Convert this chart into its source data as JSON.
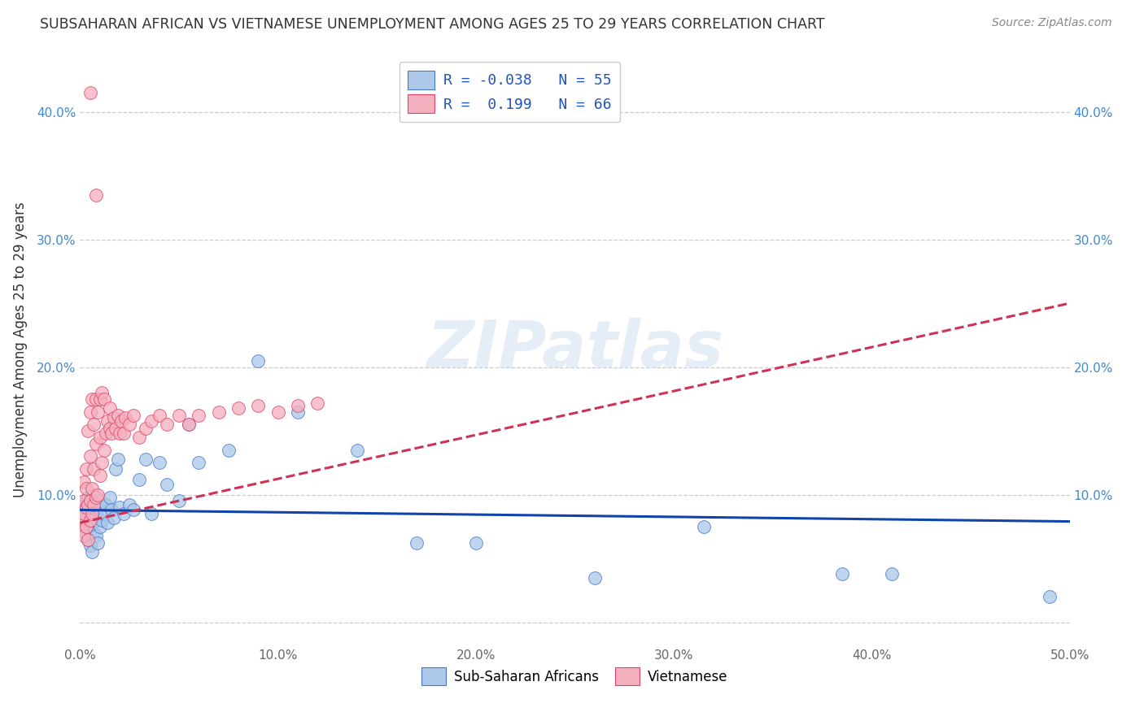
{
  "title": "SUBSAHARAN AFRICAN VS VIETNAMESE UNEMPLOYMENT AMONG AGES 25 TO 29 YEARS CORRELATION CHART",
  "source": "Source: ZipAtlas.com",
  "ylabel": "Unemployment Among Ages 25 to 29 years",
  "xlim": [
    0.0,
    0.5
  ],
  "ylim": [
    -0.018,
    0.445
  ],
  "xticks": [
    0.0,
    0.1,
    0.2,
    0.3,
    0.4,
    0.5
  ],
  "yticks": [
    0.0,
    0.1,
    0.2,
    0.3,
    0.4
  ],
  "blue_dot_color": "#adc8e8",
  "blue_edge_color": "#4477cc",
  "pink_dot_color": "#f5b0c0",
  "pink_edge_color": "#dd4466",
  "blue_line_color": "#1144aa",
  "pink_line_color": "#cc3355",
  "blue_R": -0.038,
  "blue_N": 55,
  "pink_R": 0.199,
  "pink_N": 66,
  "watermark": "ZIPatlas",
  "legend_blue_label": "Sub-Saharan Africans",
  "legend_pink_label": "Vietnamese",
  "tick_color_y": "#4488cc",
  "tick_color_x": "#666666",
  "grid_color": "#cccccc",
  "title_color": "#333333",
  "source_color": "#888888",
  "ylabel_color": "#333333",
  "blue_line_x0": 0.0,
  "blue_line_y0": 0.088,
  "blue_line_x1": 0.5,
  "blue_line_y1": 0.079,
  "pink_line_x0": 0.0,
  "pink_line_y0": 0.078,
  "pink_line_x1": 0.5,
  "pink_line_y1": 0.25,
  "blue_x": [
    0.001,
    0.002,
    0.002,
    0.003,
    0.003,
    0.003,
    0.004,
    0.004,
    0.004,
    0.005,
    0.005,
    0.005,
    0.006,
    0.006,
    0.006,
    0.007,
    0.007,
    0.008,
    0.008,
    0.009,
    0.009,
    0.01,
    0.01,
    0.011,
    0.012,
    0.013,
    0.014,
    0.015,
    0.016,
    0.017,
    0.018,
    0.019,
    0.02,
    0.022,
    0.025,
    0.027,
    0.03,
    0.033,
    0.036,
    0.04,
    0.044,
    0.05,
    0.055,
    0.06,
    0.075,
    0.09,
    0.11,
    0.14,
    0.17,
    0.2,
    0.26,
    0.315,
    0.385,
    0.41,
    0.49
  ],
  "blue_y": [
    0.08,
    0.075,
    0.09,
    0.07,
    0.085,
    0.095,
    0.065,
    0.088,
    0.098,
    0.06,
    0.082,
    0.092,
    0.055,
    0.078,
    0.1,
    0.07,
    0.088,
    0.068,
    0.085,
    0.062,
    0.09,
    0.075,
    0.095,
    0.08,
    0.085,
    0.092,
    0.078,
    0.098,
    0.088,
    0.082,
    0.12,
    0.128,
    0.09,
    0.085,
    0.092,
    0.088,
    0.112,
    0.128,
    0.085,
    0.125,
    0.108,
    0.095,
    0.155,
    0.125,
    0.135,
    0.205,
    0.165,
    0.135,
    0.062,
    0.062,
    0.035,
    0.075,
    0.038,
    0.038,
    0.02
  ],
  "pink_x": [
    0.001,
    0.001,
    0.001,
    0.002,
    0.002,
    0.002,
    0.002,
    0.003,
    0.003,
    0.003,
    0.003,
    0.004,
    0.004,
    0.004,
    0.005,
    0.005,
    0.005,
    0.005,
    0.006,
    0.006,
    0.006,
    0.007,
    0.007,
    0.007,
    0.008,
    0.008,
    0.008,
    0.009,
    0.009,
    0.01,
    0.01,
    0.01,
    0.011,
    0.011,
    0.012,
    0.012,
    0.013,
    0.014,
    0.015,
    0.015,
    0.016,
    0.017,
    0.018,
    0.019,
    0.02,
    0.021,
    0.022,
    0.023,
    0.025,
    0.027,
    0.03,
    0.033,
    0.036,
    0.04,
    0.044,
    0.05,
    0.055,
    0.06,
    0.07,
    0.08,
    0.09,
    0.1,
    0.11,
    0.12,
    0.005,
    0.008
  ],
  "pink_y": [
    0.082,
    0.072,
    0.09,
    0.068,
    0.085,
    0.095,
    0.11,
    0.075,
    0.09,
    0.105,
    0.12,
    0.065,
    0.092,
    0.15,
    0.08,
    0.095,
    0.13,
    0.165,
    0.085,
    0.105,
    0.175,
    0.092,
    0.12,
    0.155,
    0.098,
    0.14,
    0.175,
    0.1,
    0.165,
    0.115,
    0.145,
    0.175,
    0.125,
    0.18,
    0.135,
    0.175,
    0.148,
    0.158,
    0.152,
    0.168,
    0.148,
    0.16,
    0.152,
    0.162,
    0.148,
    0.158,
    0.148,
    0.16,
    0.155,
    0.162,
    0.145,
    0.152,
    0.158,
    0.162,
    0.155,
    0.162,
    0.155,
    0.162,
    0.165,
    0.168,
    0.17,
    0.165,
    0.17,
    0.172,
    0.415,
    0.335
  ]
}
